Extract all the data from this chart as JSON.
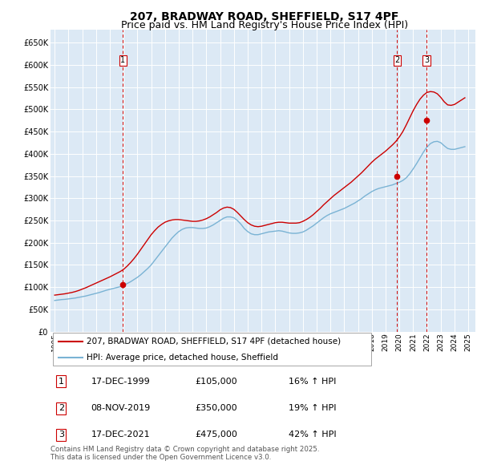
{
  "title": "207, BRADWAY ROAD, SHEFFIELD, S17 4PF",
  "subtitle": "Price paid vs. HM Land Registry's House Price Index (HPI)",
  "title_fontsize": 10,
  "subtitle_fontsize": 9,
  "background_color": "#ffffff",
  "plot_bg_color": "#dce9f5",
  "grid_color": "#ffffff",
  "ylim": [
    0,
    680000
  ],
  "yticks": [
    0,
    50000,
    100000,
    150000,
    200000,
    250000,
    300000,
    350000,
    400000,
    450000,
    500000,
    550000,
    600000,
    650000
  ],
  "hpi_line_color": "#7ab3d4",
  "price_line_color": "#cc0000",
  "sale_marker_color": "#cc0000",
  "dashed_line_color": "#cc0000",
  "legend_label_price": "207, BRADWAY ROAD, SHEFFIELD, S17 4PF (detached house)",
  "legend_label_hpi": "HPI: Average price, detached house, Sheffield",
  "sale_years": [
    1999.96,
    2019.84,
    2021.96
  ],
  "sale_prices": [
    105000,
    350000,
    475000
  ],
  "sale_labels": [
    "1",
    "2",
    "3"
  ],
  "table_data": [
    {
      "num": "1",
      "date": "17-DEC-1999",
      "price": "£105,000",
      "hpi": "16% ↑ HPI"
    },
    {
      "num": "2",
      "date": "08-NOV-2019",
      "price": "£350,000",
      "hpi": "19% ↑ HPI"
    },
    {
      "num": "3",
      "date": "17-DEC-2021",
      "price": "£475,000",
      "hpi": "42% ↑ HPI"
    }
  ],
  "footer": "Contains HM Land Registry data © Crown copyright and database right 2025.\nThis data is licensed under the Open Government Licence v3.0.",
  "hpi_x": [
    1995.0,
    1995.25,
    1995.5,
    1995.75,
    1996.0,
    1996.25,
    1996.5,
    1996.75,
    1997.0,
    1997.25,
    1997.5,
    1997.75,
    1998.0,
    1998.25,
    1998.5,
    1998.75,
    1999.0,
    1999.25,
    1999.5,
    1999.75,
    2000.0,
    2000.25,
    2000.5,
    2000.75,
    2001.0,
    2001.25,
    2001.5,
    2001.75,
    2002.0,
    2002.25,
    2002.5,
    2002.75,
    2003.0,
    2003.25,
    2003.5,
    2003.75,
    2004.0,
    2004.25,
    2004.5,
    2004.75,
    2005.0,
    2005.25,
    2005.5,
    2005.75,
    2006.0,
    2006.25,
    2006.5,
    2006.75,
    2007.0,
    2007.25,
    2007.5,
    2007.75,
    2008.0,
    2008.25,
    2008.5,
    2008.75,
    2009.0,
    2009.25,
    2009.5,
    2009.75,
    2010.0,
    2010.25,
    2010.5,
    2010.75,
    2011.0,
    2011.25,
    2011.5,
    2011.75,
    2012.0,
    2012.25,
    2012.5,
    2012.75,
    2013.0,
    2013.25,
    2013.5,
    2013.75,
    2014.0,
    2014.25,
    2014.5,
    2014.75,
    2015.0,
    2015.25,
    2015.5,
    2015.75,
    2016.0,
    2016.25,
    2016.5,
    2016.75,
    2017.0,
    2017.25,
    2017.5,
    2017.75,
    2018.0,
    2018.25,
    2018.5,
    2018.75,
    2019.0,
    2019.25,
    2019.5,
    2019.75,
    2020.0,
    2020.25,
    2020.5,
    2020.75,
    2021.0,
    2021.25,
    2021.5,
    2021.75,
    2022.0,
    2022.25,
    2022.5,
    2022.75,
    2023.0,
    2023.25,
    2023.5,
    2023.75,
    2024.0,
    2024.25,
    2024.5,
    2024.75
  ],
  "hpi_y": [
    70000,
    71000,
    72000,
    72500,
    73500,
    74500,
    75500,
    77000,
    78500,
    80000,
    82000,
    84000,
    86000,
    88000,
    90500,
    93000,
    95000,
    97000,
    99000,
    101000,
    104000,
    108000,
    112000,
    117000,
    122000,
    128000,
    135000,
    142000,
    150000,
    160000,
    170000,
    180000,
    190000,
    200000,
    210000,
    218000,
    225000,
    230000,
    233000,
    234000,
    234000,
    233000,
    232000,
    232000,
    233000,
    236000,
    240000,
    245000,
    250000,
    255000,
    258000,
    258000,
    256000,
    250000,
    242000,
    232000,
    225000,
    220000,
    218000,
    218000,
    220000,
    222000,
    224000,
    225000,
    226000,
    227000,
    226000,
    224000,
    222000,
    221000,
    221000,
    222000,
    224000,
    228000,
    233000,
    238000,
    244000,
    250000,
    256000,
    261000,
    265000,
    268000,
    271000,
    274000,
    277000,
    281000,
    285000,
    289000,
    294000,
    299000,
    305000,
    310000,
    315000,
    319000,
    322000,
    324000,
    326000,
    328000,
    330000,
    333000,
    336000,
    340000,
    346000,
    355000,
    366000,
    378000,
    391000,
    404000,
    415000,
    423000,
    427000,
    428000,
    425000,
    418000,
    412000,
    410000,
    410000,
    412000,
    414000,
    416000
  ],
  "price_x": [
    1995.0,
    1995.25,
    1995.5,
    1995.75,
    1996.0,
    1996.25,
    1996.5,
    1996.75,
    1997.0,
    1997.25,
    1997.5,
    1997.75,
    1998.0,
    1998.25,
    1998.5,
    1998.75,
    1999.0,
    1999.25,
    1999.5,
    1999.75,
    2000.0,
    2000.25,
    2000.5,
    2000.75,
    2001.0,
    2001.25,
    2001.5,
    2001.75,
    2002.0,
    2002.25,
    2002.5,
    2002.75,
    2003.0,
    2003.25,
    2003.5,
    2003.75,
    2004.0,
    2004.25,
    2004.5,
    2004.75,
    2005.0,
    2005.25,
    2005.5,
    2005.75,
    2006.0,
    2006.25,
    2006.5,
    2006.75,
    2007.0,
    2007.25,
    2007.5,
    2007.75,
    2008.0,
    2008.25,
    2008.5,
    2008.75,
    2009.0,
    2009.25,
    2009.5,
    2009.75,
    2010.0,
    2010.25,
    2010.5,
    2010.75,
    2011.0,
    2011.25,
    2011.5,
    2011.75,
    2012.0,
    2012.25,
    2012.5,
    2012.75,
    2013.0,
    2013.25,
    2013.5,
    2013.75,
    2014.0,
    2014.25,
    2014.5,
    2014.75,
    2015.0,
    2015.25,
    2015.5,
    2015.75,
    2016.0,
    2016.25,
    2016.5,
    2016.75,
    2017.0,
    2017.25,
    2017.5,
    2017.75,
    2018.0,
    2018.25,
    2018.5,
    2018.75,
    2019.0,
    2019.25,
    2019.5,
    2019.75,
    2020.0,
    2020.25,
    2020.5,
    2020.75,
    2021.0,
    2021.25,
    2021.5,
    2021.75,
    2022.0,
    2022.25,
    2022.5,
    2022.75,
    2023.0,
    2023.25,
    2023.5,
    2023.75,
    2024.0,
    2024.25,
    2024.5,
    2024.75
  ],
  "price_y": [
    82000,
    83000,
    84000,
    85000,
    86500,
    88000,
    90000,
    92500,
    95500,
    98500,
    102000,
    105500,
    109000,
    112500,
    116000,
    119500,
    123000,
    127000,
    131000,
    135000,
    140000,
    147000,
    155000,
    164000,
    174000,
    185000,
    196000,
    207000,
    218000,
    227000,
    235000,
    241000,
    246000,
    249000,
    251000,
    252000,
    252000,
    251000,
    250000,
    249000,
    248000,
    248000,
    249000,
    251000,
    254000,
    258000,
    263000,
    268000,
    274000,
    278000,
    280000,
    279000,
    275000,
    268000,
    260000,
    252000,
    245000,
    240000,
    237000,
    236000,
    237000,
    239000,
    241000,
    243000,
    245000,
    246000,
    246000,
    245000,
    244000,
    244000,
    244000,
    245000,
    248000,
    252000,
    257000,
    263000,
    270000,
    277000,
    285000,
    292000,
    299000,
    306000,
    312000,
    318000,
    324000,
    330000,
    336000,
    343000,
    350000,
    357000,
    365000,
    373000,
    381000,
    388000,
    394000,
    400000,
    406000,
    413000,
    420000,
    428000,
    438000,
    450000,
    465000,
    481000,
    497000,
    511000,
    523000,
    532000,
    538000,
    540000,
    539000,
    535000,
    527000,
    517000,
    510000,
    509000,
    511000,
    516000,
    521000,
    526000
  ]
}
